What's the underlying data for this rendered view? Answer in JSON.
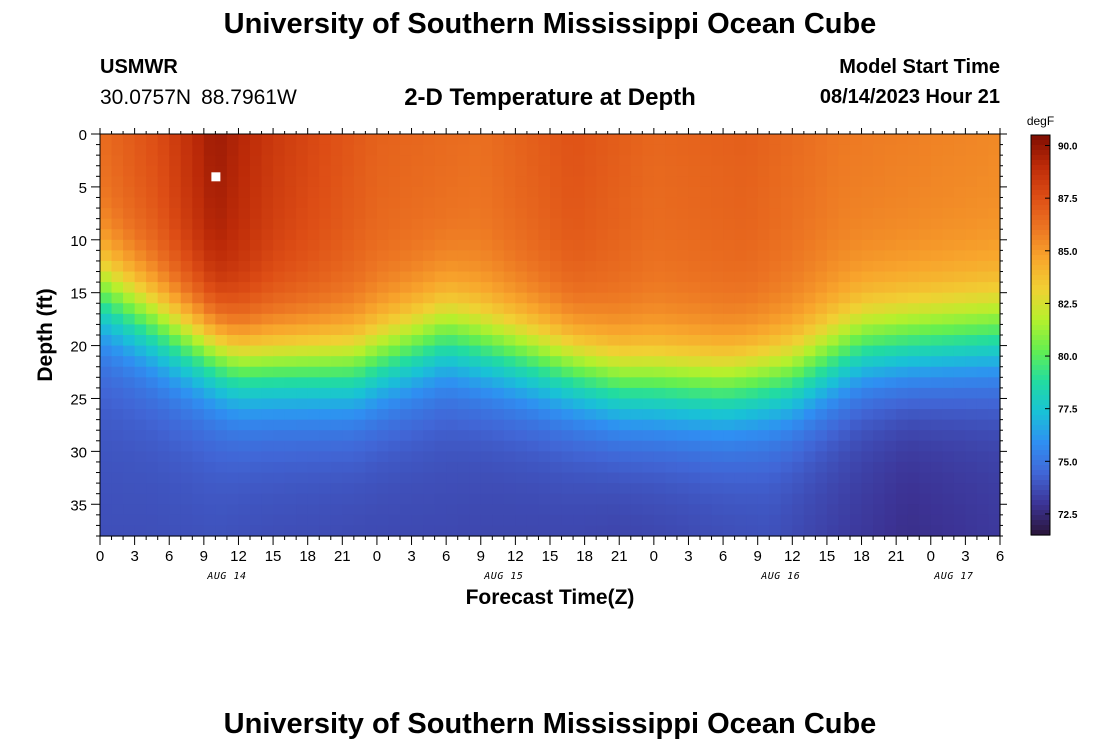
{
  "header": {
    "title": "University of Southern Mississippi Ocean Cube",
    "station": "USMWR",
    "lat": "30.0757N",
    "lon": "88.7961W",
    "subtitle": "2-D Temperature at Depth",
    "start_label": "Model Start Time",
    "start_value": "08/14/2023 Hour 21"
  },
  "footer": {
    "title": "University of Southern Mississippi Ocean Cube"
  },
  "chart_data": {
    "type": "heatmap",
    "title": "2-D Temperature at Depth",
    "xlabel": "Forecast Time(Z)",
    "ylabel": "Depth (ft)",
    "x_range_hours": [
      0,
      78
    ],
    "x_tick_step_hours": 3,
    "x_tick_labels": [
      "0",
      "3",
      "6",
      "9",
      "12",
      "15",
      "18",
      "21",
      "0",
      "3",
      "6",
      "9",
      "12",
      "15",
      "18",
      "21",
      "0",
      "3",
      "6",
      "9",
      "12",
      "15",
      "18",
      "21",
      "0",
      "3",
      "6"
    ],
    "date_labels": [
      {
        "label": "AUG 14",
        "hour": 11
      },
      {
        "label": "AUG 15",
        "hour": 35
      },
      {
        "label": "AUG 16",
        "hour": 59
      },
      {
        "label": "AUG 17",
        "hour": 74
      }
    ],
    "ylim": [
      0,
      38
    ],
    "y_ticks": [
      0,
      5,
      10,
      15,
      20,
      25,
      30,
      35
    ],
    "colorbar": {
      "unit": "degF",
      "range": [
        71.5,
        90.5
      ],
      "ticks": [
        "90.0",
        "87.5",
        "85.0",
        "82.5",
        "80.0",
        "77.5",
        "75.0",
        "72.5"
      ],
      "colors": [
        "#2a1438",
        "#3c3395",
        "#4166d6",
        "#2f8ff2",
        "#19c2d6",
        "#22dca0",
        "#64ef50",
        "#b6f02c",
        "#f1d033",
        "#f8a52c",
        "#ec7422",
        "#dd4d15",
        "#bc2a08",
        "#7e0d02"
      ]
    },
    "thermocline_depth_ft": [
      {
        "hour": 0,
        "depth": 15
      },
      {
        "hour": 6,
        "depth": 18.5
      },
      {
        "hour": 12,
        "depth": 21.5
      },
      {
        "hour": 22,
        "depth": 22
      },
      {
        "hour": 30,
        "depth": 19
      },
      {
        "hour": 37,
        "depth": 21
      },
      {
        "hour": 45,
        "depth": 23.5
      },
      {
        "hour": 54,
        "depth": 24
      },
      {
        "hour": 60,
        "depth": 23
      },
      {
        "hour": 66,
        "depth": 20
      },
      {
        "hour": 78,
        "depth": 19
      }
    ],
    "surface_temp_degF": [
      {
        "hour": 0,
        "temp": 86.4
      },
      {
        "hour": 5,
        "temp": 87.6
      },
      {
        "hour": 10,
        "temp": 89.8
      },
      {
        "hour": 15,
        "temp": 88.4
      },
      {
        "hour": 24,
        "temp": 86.8
      },
      {
        "hour": 33,
        "temp": 86.3
      },
      {
        "hour": 41,
        "temp": 87.4
      },
      {
        "hour": 48,
        "temp": 86.6
      },
      {
        "hour": 56,
        "temp": 86.9
      },
      {
        "hour": 64,
        "temp": 86.0
      },
      {
        "hour": 78,
        "temp": 85.5
      }
    ],
    "bottom_temp_degF": [
      {
        "hour": 0,
        "temp": 72.8
      },
      {
        "hour": 12,
        "temp": 72.6
      },
      {
        "hour": 30,
        "temp": 72.6
      },
      {
        "hour": 45,
        "temp": 72.4
      },
      {
        "hour": 58,
        "temp": 72.8
      },
      {
        "hour": 70,
        "temp": 71.8
      },
      {
        "hour": 78,
        "temp": 72.2
      }
    ],
    "marker": {
      "hour": 10,
      "depth_ft": 4
    }
  }
}
